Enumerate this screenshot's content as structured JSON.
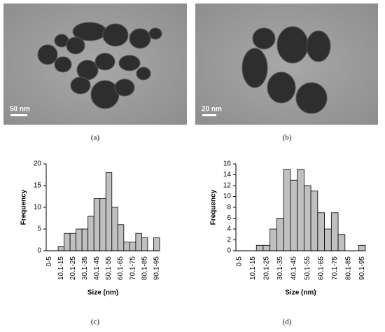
{
  "figure": {
    "panels": [
      "(a)",
      "(b)",
      "(c)",
      "(d)"
    ],
    "scale_bars": [
      "50 nm",
      "20 nm"
    ]
  },
  "chart_data": [
    {
      "type": "bar",
      "xlabel": "Size (nm)",
      "ylabel": "Frequency",
      "color": "#c0c0c0",
      "categories": [
        "0-5",
        null,
        "10.1-15",
        null,
        "20.1-25",
        null,
        "30.1-35",
        null,
        "40.1-45",
        null,
        "50.1-55",
        null,
        "60.1-65",
        null,
        "70.1-75",
        null,
        "80.1-85",
        null,
        "90.1-95"
      ],
      "values": [
        0,
        0,
        1,
        4,
        4,
        5,
        5,
        8,
        12,
        12,
        18,
        10,
        6,
        2,
        2,
        4,
        3,
        0,
        3
      ],
      "ylim": [
        0,
        20
      ],
      "yticks": [
        0,
        5,
        10,
        15,
        20
      ]
    },
    {
      "type": "bar",
      "xlabel": "Size (nm)",
      "ylabel": "Frequency",
      "color": "#c0c0c0",
      "categories": [
        "0-5",
        null,
        "10.1-15",
        null,
        "20.1-25",
        null,
        "30.1-35",
        null,
        "40.1-45",
        null,
        "50.1-55",
        null,
        "60.1-65",
        null,
        "70.1-75",
        null,
        "80.1-85",
        null,
        "90.1-95"
      ],
      "values": [
        0,
        0,
        0,
        1,
        1,
        4,
        6,
        15,
        13,
        15,
        12,
        11,
        7,
        4,
        7,
        3,
        0,
        0,
        1
      ],
      "ylim": [
        0,
        16
      ],
      "yticks": [
        0,
        2,
        4,
        6,
        8,
        10,
        12,
        14,
        16
      ]
    }
  ]
}
